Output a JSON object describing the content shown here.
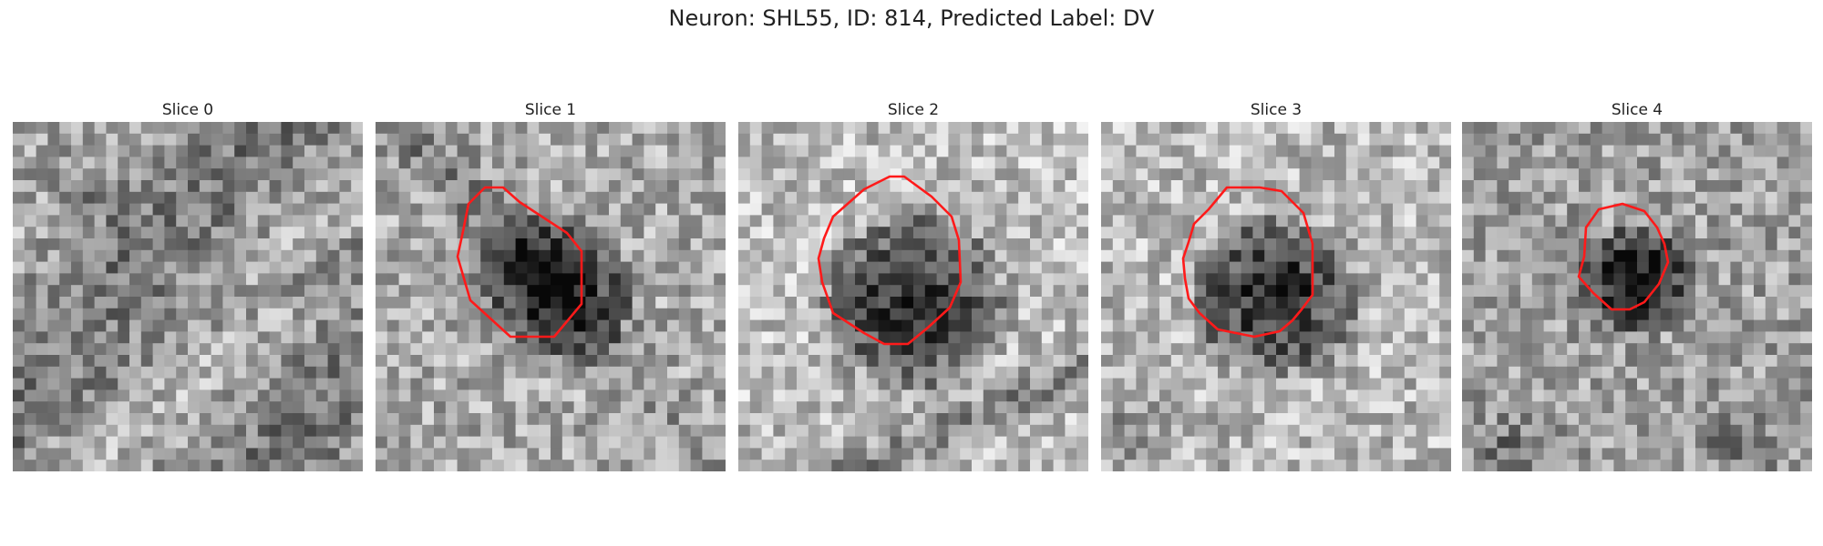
{
  "figure": {
    "title": "Neuron: SHL55, ID: 814, Predicted Label: DV",
    "contour_color": "#ff1a1a",
    "slices": [
      {
        "label": "Slice 0",
        "has_contour": false,
        "seed": 11
      },
      {
        "label": "Slice 1",
        "has_contour": true,
        "seed": 23
      },
      {
        "label": "Slice 2",
        "has_contour": true,
        "seed": 37
      },
      {
        "label": "Slice 3",
        "has_contour": true,
        "seed": 41
      },
      {
        "label": "Slice 4",
        "has_contour": true,
        "seed": 53
      }
    ]
  }
}
